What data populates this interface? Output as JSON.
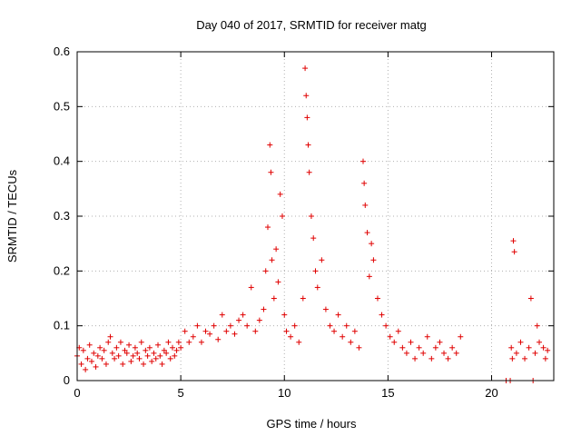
{
  "chart_data": {
    "type": "scatter",
    "title": "Day 040 of 2017, SRMTID for receiver matg",
    "xlabel": "GPS time / hours",
    "ylabel": "SRMTID / TECUs",
    "xlim": [
      0,
      23
    ],
    "ylim": [
      0,
      0.6
    ],
    "xticks": [
      0,
      5,
      10,
      15,
      20
    ],
    "yticks": [
      0,
      0.1,
      0.2,
      0.3,
      0.4,
      0.5,
      0.6
    ],
    "grid": true,
    "marker": "plus",
    "marker_color": "#e00000",
    "series": [
      {
        "name": "SRMTID",
        "points": [
          [
            0.0,
            0.045
          ],
          [
            0.1,
            0.06
          ],
          [
            0.2,
            0.03
          ],
          [
            0.3,
            0.055
          ],
          [
            0.4,
            0.02
          ],
          [
            0.5,
            0.04
          ],
          [
            0.6,
            0.065
          ],
          [
            0.7,
            0.035
          ],
          [
            0.8,
            0.05
          ],
          [
            0.9,
            0.025
          ],
          [
            1.0,
            0.045
          ],
          [
            1.1,
            0.06
          ],
          [
            1.2,
            0.04
          ],
          [
            1.3,
            0.055
          ],
          [
            1.4,
            0.03
          ],
          [
            1.5,
            0.07
          ],
          [
            1.6,
            0.08
          ],
          [
            1.7,
            0.05
          ],
          [
            1.8,
            0.04
          ],
          [
            1.9,
            0.06
          ],
          [
            2.0,
            0.045
          ],
          [
            2.1,
            0.07
          ],
          [
            2.2,
            0.03
          ],
          [
            2.3,
            0.055
          ],
          [
            2.4,
            0.05
          ],
          [
            2.5,
            0.065
          ],
          [
            2.6,
            0.035
          ],
          [
            2.7,
            0.045
          ],
          [
            2.8,
            0.06
          ],
          [
            2.9,
            0.05
          ],
          [
            3.0,
            0.04
          ],
          [
            3.1,
            0.07
          ],
          [
            3.2,
            0.03
          ],
          [
            3.3,
            0.055
          ],
          [
            3.4,
            0.045
          ],
          [
            3.5,
            0.06
          ],
          [
            3.6,
            0.035
          ],
          [
            3.7,
            0.05
          ],
          [
            3.8,
            0.04
          ],
          [
            3.9,
            0.065
          ],
          [
            4.0,
            0.045
          ],
          [
            4.1,
            0.03
          ],
          [
            4.2,
            0.055
          ],
          [
            4.3,
            0.05
          ],
          [
            4.4,
            0.07
          ],
          [
            4.5,
            0.04
          ],
          [
            4.6,
            0.06
          ],
          [
            4.7,
            0.045
          ],
          [
            4.8,
            0.055
          ],
          [
            4.9,
            0.07
          ],
          [
            5.0,
            0.06
          ],
          [
            5.2,
            0.09
          ],
          [
            5.4,
            0.07
          ],
          [
            5.6,
            0.08
          ],
          [
            5.8,
            0.1
          ],
          [
            6.0,
            0.07
          ],
          [
            6.2,
            0.09
          ],
          [
            6.4,
            0.085
          ],
          [
            6.6,
            0.1
          ],
          [
            6.8,
            0.075
          ],
          [
            7.0,
            0.12
          ],
          [
            7.2,
            0.09
          ],
          [
            7.4,
            0.1
          ],
          [
            7.6,
            0.085
          ],
          [
            7.8,
            0.11
          ],
          [
            8.0,
            0.12
          ],
          [
            8.2,
            0.1
          ],
          [
            8.4,
            0.17
          ],
          [
            8.6,
            0.09
          ],
          [
            8.8,
            0.11
          ],
          [
            9.0,
            0.13
          ],
          [
            9.1,
            0.2
          ],
          [
            9.2,
            0.28
          ],
          [
            9.3,
            0.43
          ],
          [
            9.35,
            0.38
          ],
          [
            9.4,
            0.22
          ],
          [
            9.5,
            0.15
          ],
          [
            9.6,
            0.24
          ],
          [
            9.7,
            0.18
          ],
          [
            9.8,
            0.34
          ],
          [
            9.9,
            0.3
          ],
          [
            10.0,
            0.12
          ],
          [
            10.1,
            0.09
          ],
          [
            10.3,
            0.08
          ],
          [
            10.5,
            0.1
          ],
          [
            10.7,
            0.07
          ],
          [
            10.9,
            0.15
          ],
          [
            11.0,
            0.57
          ],
          [
            11.05,
            0.52
          ],
          [
            11.1,
            0.48
          ],
          [
            11.15,
            0.43
          ],
          [
            11.2,
            0.38
          ],
          [
            11.3,
            0.3
          ],
          [
            11.4,
            0.26
          ],
          [
            11.5,
            0.2
          ],
          [
            11.6,
            0.17
          ],
          [
            11.8,
            0.22
          ],
          [
            12.0,
            0.13
          ],
          [
            12.2,
            0.1
          ],
          [
            12.4,
            0.09
          ],
          [
            12.6,
            0.12
          ],
          [
            12.8,
            0.08
          ],
          [
            13.0,
            0.1
          ],
          [
            13.2,
            0.07
          ],
          [
            13.4,
            0.09
          ],
          [
            13.6,
            0.06
          ],
          [
            13.8,
            0.4
          ],
          [
            13.85,
            0.36
          ],
          [
            13.9,
            0.32
          ],
          [
            14.0,
            0.27
          ],
          [
            14.1,
            0.19
          ],
          [
            14.2,
            0.25
          ],
          [
            14.3,
            0.22
          ],
          [
            14.5,
            0.15
          ],
          [
            14.7,
            0.12
          ],
          [
            14.9,
            0.1
          ],
          [
            15.1,
            0.08
          ],
          [
            15.3,
            0.07
          ],
          [
            15.5,
            0.09
          ],
          [
            15.7,
            0.06
          ],
          [
            15.9,
            0.05
          ],
          [
            16.1,
            0.07
          ],
          [
            16.3,
            0.04
          ],
          [
            16.5,
            0.06
          ],
          [
            16.7,
            0.05
          ],
          [
            16.9,
            0.08
          ],
          [
            17.1,
            0.04
          ],
          [
            17.3,
            0.06
          ],
          [
            17.5,
            0.07
          ],
          [
            17.7,
            0.05
          ],
          [
            17.9,
            0.04
          ],
          [
            18.1,
            0.06
          ],
          [
            18.3,
            0.05
          ],
          [
            18.5,
            0.08
          ],
          [
            20.7,
            0.0
          ],
          [
            20.9,
            0.0
          ],
          [
            20.95,
            0.06
          ],
          [
            21.0,
            0.04
          ],
          [
            21.05,
            0.255
          ],
          [
            21.1,
            0.235
          ],
          [
            21.2,
            0.05
          ],
          [
            21.4,
            0.07
          ],
          [
            21.6,
            0.04
          ],
          [
            21.8,
            0.06
          ],
          [
            21.9,
            0.15
          ],
          [
            22.0,
            0.0
          ],
          [
            22.1,
            0.05
          ],
          [
            22.2,
            0.1
          ],
          [
            22.3,
            0.07
          ],
          [
            22.5,
            0.06
          ],
          [
            22.6,
            0.04
          ],
          [
            22.7,
            0.055
          ]
        ]
      }
    ]
  }
}
